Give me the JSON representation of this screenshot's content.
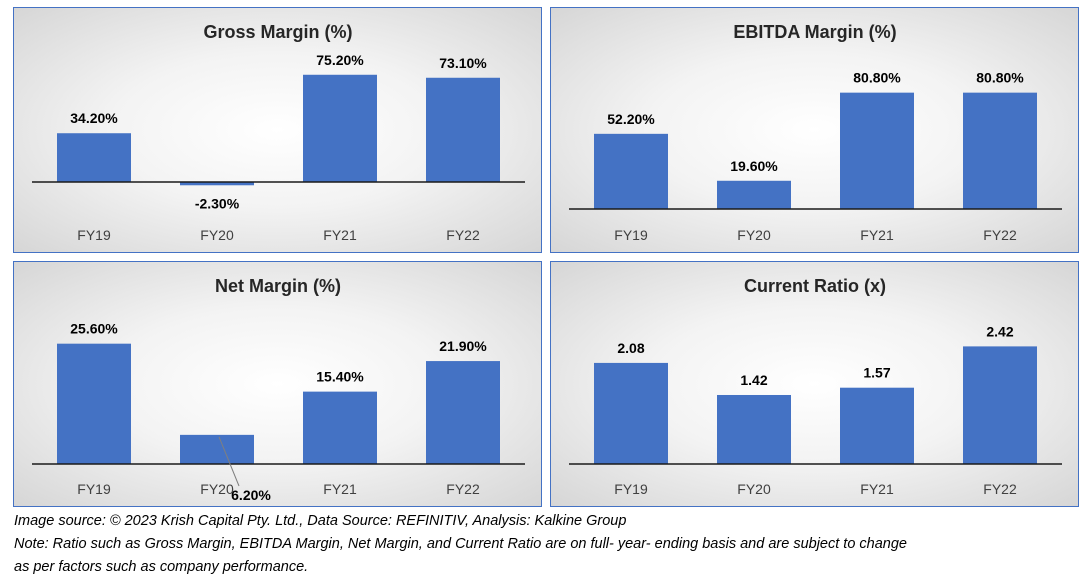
{
  "chart_data": [
    {
      "type": "bar",
      "title": "Gross Margin (%)",
      "categories": [
        "FY19",
        "FY20",
        "FY21",
        "FY22"
      ],
      "values": [
        34.2,
        -2.3,
        75.2,
        73.1
      ],
      "data_labels": [
        "34.20%",
        "-2.30%",
        "75.20%",
        "73.10%"
      ],
      "color": "#4472C4"
    },
    {
      "type": "bar",
      "title": "EBITDA Margin (%)",
      "categories": [
        "FY19",
        "FY20",
        "FY21",
        "FY22"
      ],
      "values": [
        52.2,
        19.6,
        80.8,
        80.8
      ],
      "data_labels": [
        "52.20%",
        "19.60%",
        "80.80%",
        "80.80%"
      ],
      "color": "#4472C4"
    },
    {
      "type": "bar",
      "title": "Net Margin (%)",
      "categories": [
        "FY19",
        "FY20",
        "FY21",
        "FY22"
      ],
      "values": [
        25.6,
        6.2,
        15.4,
        21.9
      ],
      "data_labels": [
        "25.60%",
        "6.20%",
        "15.40%",
        "21.90%"
      ],
      "color": "#4472C4"
    },
    {
      "type": "bar",
      "title": "Current Ratio (x)",
      "categories": [
        "FY19",
        "FY20",
        "FY21",
        "FY22"
      ],
      "values": [
        2.08,
        1.42,
        1.57,
        2.42
      ],
      "data_labels": [
        "2.08",
        "1.42",
        "1.57",
        "2.42"
      ],
      "color": "#4472C4"
    }
  ],
  "footnotes": {
    "source": "Image source: © 2023 Krish Capital Pty. Ltd., Data Source: REFINITIV, Analysis: Kalkine Group",
    "note_line1": "Note: Ratio such as Gross Margin, EBITDA Margin, Net Margin, and Current Ratio are on full- year- ending basis and are subject to change",
    "note_line2": "as per factors such as company performance."
  }
}
